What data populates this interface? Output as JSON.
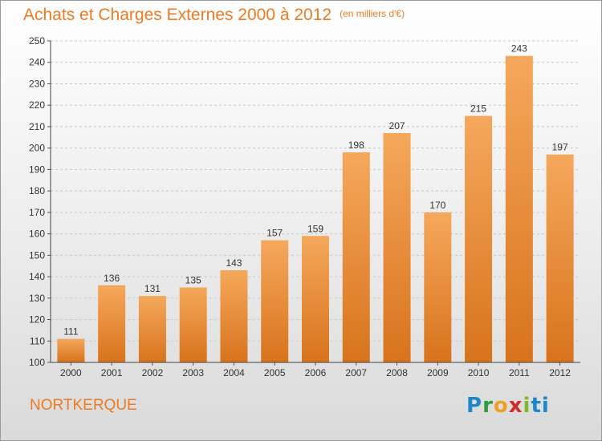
{
  "header": {
    "title": "Achats et Charges Externes 2000 à 2012",
    "unit": "(en milliers d'€)"
  },
  "footer": {
    "commune": "NORTKERQUE",
    "logo_text": "Proxiti",
    "logo_letters": [
      "P",
      "r",
      "o",
      "x",
      "i",
      "ti"
    ]
  },
  "colors": {
    "accent": "#f07a22",
    "bar_top": "#f5a85c",
    "bar_bottom": "#d8731c"
  },
  "chart_data": {
    "type": "bar",
    "categories": [
      "2000",
      "2001",
      "2002",
      "2003",
      "2004",
      "2005",
      "2006",
      "2007",
      "2008",
      "2009",
      "2010",
      "2011",
      "2012"
    ],
    "values": [
      111,
      136,
      131,
      135,
      143,
      157,
      159,
      198,
      207,
      170,
      215,
      243,
      197
    ],
    "title": "Achats et Charges Externes 2000 à 2012",
    "xlabel": "",
    "ylabel": "",
    "ylim": [
      100,
      250
    ],
    "yticks": [
      100,
      110,
      120,
      130,
      140,
      150,
      160,
      170,
      180,
      190,
      200,
      210,
      220,
      230,
      240,
      250
    ],
    "grid": true
  }
}
